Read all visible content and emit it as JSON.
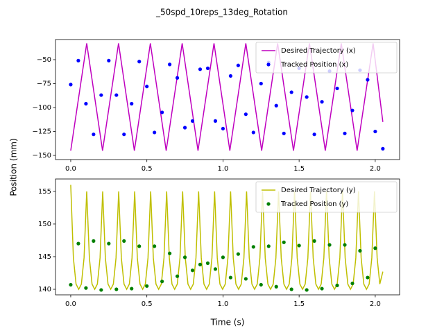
{
  "title": "_50spd_10reps_13deg_Rotation",
  "ylabel": "Position (mm)",
  "chart_data": [
    {
      "type": "line",
      "xlim": [
        -0.1,
        2.16
      ],
      "ylim": [
        -154.3,
        -29
      ],
      "xticks": [
        {
          "value": 0,
          "label": "0.0"
        },
        {
          "value": 0.5,
          "label": "0.5"
        },
        {
          "value": 1,
          "label": "1.0"
        },
        {
          "value": 1.5,
          "label": "1.5"
        },
        {
          "value": 2,
          "label": "2.0"
        }
      ],
      "yticks": [
        {
          "value": -150,
          "label": "−150"
        },
        {
          "value": -125,
          "label": "−125"
        },
        {
          "value": -100,
          "label": "−100"
        },
        {
          "value": -75,
          "label": "−75"
        },
        {
          "value": -50,
          "label": "−50"
        }
      ],
      "legend": "upper right",
      "series": [
        {
          "name": "Desired Trajectory (x)",
          "color": "#bf00bf",
          "style": "line",
          "x": [
            0,
            0.105,
            0.209,
            0.314,
            0.418,
            0.523,
            0.627,
            0.732,
            0.836,
            0.941,
            1.045,
            1.15,
            1.254,
            1.359,
            1.463,
            1.568,
            1.672,
            1.777,
            1.881,
            1.986,
            2.05
          ],
          "values": [
            -145,
            -33,
            -145,
            -33,
            -145,
            -33,
            -145,
            -33,
            -145,
            -33,
            -145,
            -33,
            -145,
            -33,
            -145,
            -33,
            -145,
            -33,
            -145,
            -33,
            -115
          ]
        },
        {
          "name": "Tracked Position (x)",
          "color": "#0000ff",
          "style": "points",
          "x": [
            0,
            0.05,
            0.1,
            0.15,
            0.2,
            0.25,
            0.3,
            0.35,
            0.4,
            0.45,
            0.5,
            0.55,
            0.6,
            0.65,
            0.7,
            0.75,
            0.8,
            0.85,
            0.9,
            0.95,
            1.0,
            1.05,
            1.1,
            1.15,
            1.2,
            1.25,
            1.3,
            1.35,
            1.4,
            1.45,
            1.5,
            1.55,
            1.6,
            1.65,
            1.7,
            1.75,
            1.8,
            1.85,
            1.9,
            1.95,
            2.0,
            2.05
          ],
          "values": [
            -76,
            -51,
            -96,
            -128,
            -87,
            -51,
            -87,
            -128,
            -96,
            -52,
            -78,
            -126,
            -105,
            -55,
            -69,
            -121,
            -114,
            -60,
            -59,
            -114,
            -122,
            -67,
            -56,
            -107,
            -126,
            -75,
            -53,
            -98,
            -127,
            -84,
            -59,
            -89,
            -128,
            -94,
            -62,
            -80,
            -127,
            -103,
            -61,
            -71,
            -125,
            -143
          ]
        }
      ]
    },
    {
      "type": "line",
      "xlim": [
        -0.1,
        2.16
      ],
      "ylim": [
        139.15,
        156.9
      ],
      "xticks": [
        {
          "value": 0,
          "label": "0.0"
        },
        {
          "value": 0.5,
          "label": "0.5"
        },
        {
          "value": 1,
          "label": "1.0"
        },
        {
          "value": 1.5,
          "label": "1.5"
        },
        {
          "value": 2,
          "label": "2.0"
        }
      ],
      "yticks": [
        140,
        145,
        150,
        155
      ],
      "xlabel": "Time (s)",
      "legend": "upper right",
      "series": [
        {
          "name": "Desired Trajectory (y)",
          "color": "#bfbf00",
          "style": "line",
          "x": [
            0,
            0.0175,
            0.035,
            0.0525,
            0.07,
            0.0875,
            0.105,
            0.1225,
            0.14,
            0.1575,
            0.175,
            0.1925,
            0.21,
            0.2275,
            0.245,
            0.2625,
            0.28,
            0.2975,
            0.315,
            0.3325,
            0.35,
            0.3675,
            0.385,
            0.4025,
            0.42,
            0.4375,
            0.455,
            0.4725,
            0.49,
            0.5075,
            0.525,
            0.5425,
            0.56,
            0.5775,
            0.595,
            0.6125,
            0.63,
            0.6475,
            0.665,
            0.6825,
            0.7,
            0.7175,
            0.735,
            0.7525,
            0.77,
            0.7875,
            0.805,
            0.8225,
            0.84,
            0.8575,
            0.875,
            0.8925,
            0.91,
            0.9275,
            0.945,
            0.9625,
            0.98,
            0.9975,
            1.015,
            1.0325,
            1.05,
            1.0675,
            1.085,
            1.1025,
            1.12,
            1.1375,
            1.155,
            1.1725,
            1.19,
            1.2075,
            1.225,
            1.2425,
            1.26,
            1.2775,
            1.295,
            1.3125,
            1.33,
            1.3475,
            1.365,
            1.3825,
            1.4,
            1.4175,
            1.435,
            1.4525,
            1.47,
            1.4875,
            1.505,
            1.5225,
            1.54,
            1.5575,
            1.575,
            1.5925,
            1.61,
            1.6275,
            1.645,
            1.6625,
            1.68,
            1.6975,
            1.715,
            1.7325,
            1.75,
            1.7675,
            1.785,
            1.8025,
            1.82,
            1.8375,
            1.855,
            1.8725,
            1.89,
            1.9075,
            1.925,
            1.9425,
            1.96,
            1.9775,
            1.995,
            2.0125,
            2.03,
            2.05
          ],
          "values": [
            156,
            144.8,
            140.8,
            140,
            140.8,
            144.8,
            155,
            144.8,
            140.8,
            140,
            140.8,
            144.8,
            155,
            144.8,
            140.8,
            140,
            140.8,
            144.8,
            155,
            144.8,
            140.8,
            140,
            140.8,
            144.8,
            155,
            144.8,
            140.8,
            140,
            140.8,
            144.8,
            155,
            144.8,
            140.8,
            140,
            140.8,
            144.8,
            155,
            144.8,
            140.8,
            140,
            140.8,
            144.8,
            155,
            144.8,
            140.8,
            140,
            140.8,
            144.8,
            155,
            144.8,
            140.8,
            140,
            140.8,
            144.8,
            155,
            144.8,
            140.8,
            140,
            140.8,
            144.8,
            155,
            144.8,
            140.8,
            140,
            140.8,
            144.8,
            155,
            144.8,
            140.8,
            140,
            140.8,
            144.8,
            155,
            144.8,
            140.8,
            140,
            140.8,
            144.8,
            155,
            144.8,
            140.8,
            140,
            140.8,
            144.8,
            155,
            144.8,
            140.8,
            140,
            140.8,
            144.8,
            155,
            144.8,
            140.8,
            140,
            140.8,
            144.8,
            155,
            144.8,
            140.8,
            140,
            140.8,
            144.8,
            155,
            144.8,
            140.8,
            140,
            140.8,
            144.8,
            155,
            144.8,
            140.8,
            140,
            140.8,
            144.8,
            155,
            144.8,
            140.8,
            142.7
          ]
        },
        {
          "name": "Tracked Position (y)",
          "color": "#008000",
          "style": "points",
          "x": [
            0,
            0.05,
            0.1,
            0.15,
            0.2,
            0.25,
            0.3,
            0.35,
            0.4,
            0.45,
            0.5,
            0.55,
            0.6,
            0.65,
            0.7,
            0.75,
            0.8,
            0.85,
            0.9,
            0.95,
            1.0,
            1.05,
            1.1,
            1.15,
            1.2,
            1.25,
            1.3,
            1.35,
            1.4,
            1.45,
            1.5,
            1.55,
            1.6,
            1.65,
            1.7,
            1.75,
            1.8,
            1.85,
            1.9,
            1.95,
            2.0
          ],
          "values": [
            140.7,
            147.0,
            140.2,
            147.4,
            139.9,
            147.0,
            140.0,
            147.4,
            140.1,
            146.6,
            140.5,
            146.6,
            141.2,
            145.5,
            142.0,
            144.9,
            142.9,
            143.8,
            144.0,
            143.1,
            144.9,
            141.8,
            145.4,
            141.6,
            146.5,
            140.7,
            146.6,
            140.4,
            147.2,
            140.0,
            146.7,
            139.9,
            147.4,
            140.1,
            146.8,
            140.6,
            146.8,
            140.9,
            145.9,
            141.8,
            146.3
          ]
        }
      ]
    }
  ]
}
